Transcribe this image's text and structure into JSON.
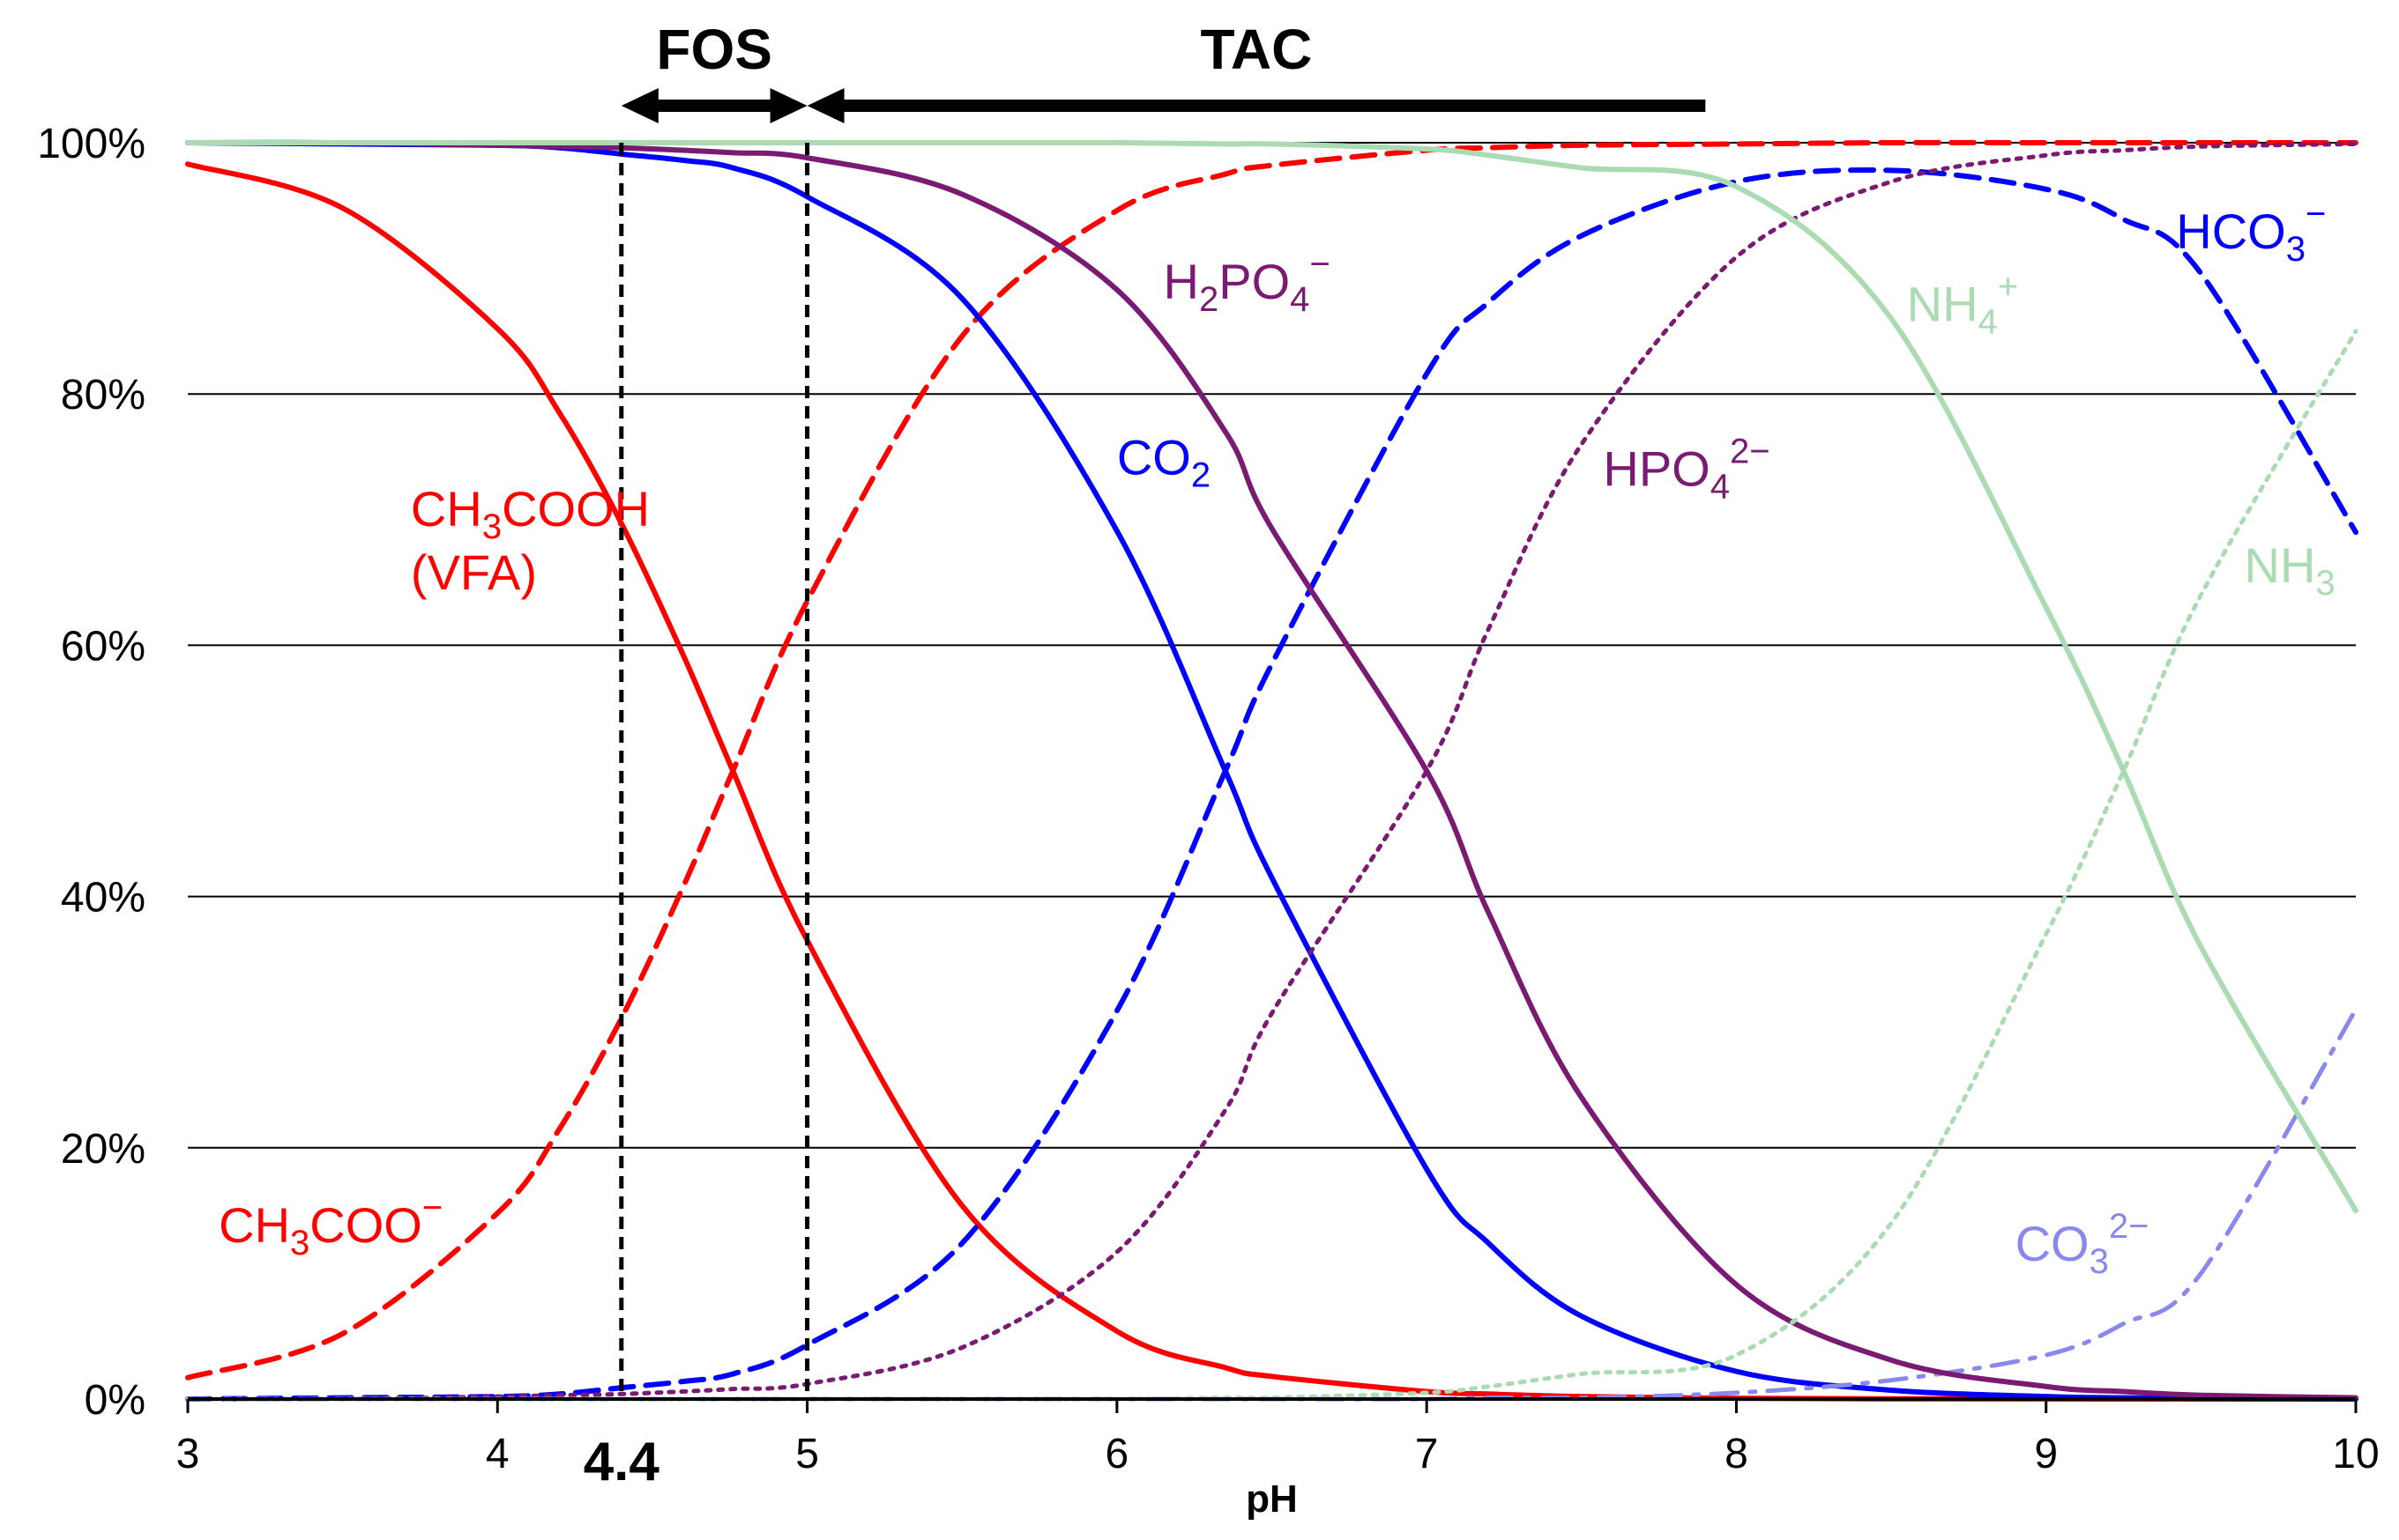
{
  "chart_data": {
    "type": "line",
    "title": "",
    "xlabel": "pH",
    "ylabel": "",
    "xlim": [
      3,
      10
    ],
    "ylim": [
      0,
      100
    ],
    "x_ticks": [
      "3",
      "4",
      "5",
      "6",
      "7",
      "8",
      "9",
      "10"
    ],
    "y_ticks": [
      "0%",
      "20%",
      "40%",
      "60%",
      "80%",
      "100%"
    ],
    "grid": true,
    "x_extra_label": "4.4",
    "vlines": [
      4.4,
      5
    ],
    "ranges": [
      {
        "label": "FOS",
        "from": 4.4,
        "to": 5,
        "arrows": "both"
      },
      {
        "label": "TAC",
        "from": 5,
        "to": 7.9,
        "arrows": "left"
      }
    ],
    "sample_x": [
      3,
      3.5,
      4,
      4.2,
      4.4,
      4.6,
      4.76,
      5,
      5.5,
      6,
      6.35,
      6.5,
      7,
      7.2,
      7.5,
      8,
      8.5,
      9,
      9.25,
      9.5,
      10
    ],
    "series": [
      {
        "name": "CH3COOH (VFA)",
        "label_main": "CH",
        "label_sub": "3",
        "label_rest": "COOH",
        "label_line2": "(VFA)",
        "color": "#ff0000",
        "style": "solid",
        "values": [
          98.3,
          94.8,
          85.2,
          78.5,
          69.7,
          59.2,
          50.0,
          36.5,
          15.4,
          5.4,
          2.5,
          1.8,
          0.6,
          0.4,
          0.2,
          0.06,
          0.02,
          0.01,
          0.0,
          0.0,
          0.0
        ]
      },
      {
        "name": "CH3COO-",
        "label_main": "CH",
        "label_sub": "3",
        "label_rest": "COO",
        "label_sup": "−",
        "color": "#ff0000",
        "style": "dashed",
        "values": [
          1.7,
          5.2,
          14.8,
          21.5,
          30.3,
          40.8,
          50.0,
          63.5,
          84.6,
          94.6,
          97.5,
          98.2,
          99.4,
          99.6,
          99.8,
          99.9,
          100,
          100,
          100,
          100,
          100
        ]
      },
      {
        "name": "CO2",
        "label_main": "CO",
        "label_sub": "2",
        "color": "#0000ff",
        "style": "solid",
        "values": [
          100,
          99.9,
          99.8,
          99.6,
          99.1,
          98.6,
          98.0,
          95.7,
          87.6,
          69.1,
          50.0,
          41.5,
          18.3,
          12.4,
          6.6,
          2.2,
          0.7,
          0.2,
          0.1,
          0.05,
          0.01
        ]
      },
      {
        "name": "HCO3-",
        "label_main": "HCO",
        "label_sub": "3",
        "label_sup": "−",
        "color": "#0000ff",
        "style": "dashed",
        "values": [
          0.0,
          0.1,
          0.2,
          0.4,
          0.9,
          1.4,
          2.0,
          4.3,
          12.4,
          30.9,
          50.0,
          58.5,
          81.6,
          87.3,
          92.6,
          96.9,
          97.8,
          96.3,
          93.9,
          89.6,
          69.0
        ]
      },
      {
        "name": "CO3 2-",
        "label_main": "CO",
        "label_sub": "3",
        "label_sup": "2−",
        "color": "#8888ee",
        "style": "dashdot",
        "values": [
          0,
          0,
          0,
          0,
          0,
          0,
          0,
          0,
          0,
          0,
          0,
          0,
          0.0,
          0.1,
          0.1,
          0.5,
          1.5,
          3.5,
          6.0,
          10.0,
          31.0
        ]
      },
      {
        "name": "H2PO4-",
        "label_main": "H",
        "label_sub": "2",
        "label_rest": "PO",
        "label_sub2": "4",
        "label_sup": "−",
        "color": "#7a1a73",
        "style": "solid",
        "values": [
          100,
          100,
          99.8,
          99.7,
          99.6,
          99.4,
          99.2,
          98.8,
          95.9,
          88.3,
          77.0,
          69.3,
          50.0,
          38.7,
          24.0,
          9.1,
          3.1,
          1.0,
          0.6,
          0.3,
          0.1
        ]
      },
      {
        "name": "HPO4 2-",
        "label_main": "HPO",
        "label_sub": "4",
        "label_sup": "2−",
        "color": "#7a1a73",
        "style": "dotted",
        "values": [
          0,
          0,
          0.2,
          0.3,
          0.4,
          0.6,
          0.8,
          1.2,
          4.1,
          11.7,
          23.0,
          30.7,
          50.0,
          61.3,
          76.0,
          90.9,
          96.9,
          99.0,
          99.4,
          99.7,
          99.9
        ]
      },
      {
        "name": "NH4+",
        "label_main": "NH",
        "label_sub": "4",
        "label_sup": "+",
        "color": "#aadbb2",
        "style": "solid",
        "values": [
          100,
          100,
          100,
          100,
          100,
          100,
          100,
          100,
          100,
          100,
          99.9,
          99.9,
          99.5,
          99.0,
          98.0,
          96.5,
          86.0,
          63.0,
          50.0,
          36.0,
          15.0
        ]
      },
      {
        "name": "NH3",
        "label_main": "NH",
        "label_sub": "3",
        "color": "#aadbb2",
        "style": "dotted",
        "values": [
          0,
          0,
          0,
          0,
          0,
          0,
          0,
          0,
          0,
          0,
          0.1,
          0.1,
          0.5,
          1.0,
          2.0,
          3.5,
          14.0,
          37.0,
          50.0,
          64.0,
          85.0
        ]
      }
    ]
  }
}
